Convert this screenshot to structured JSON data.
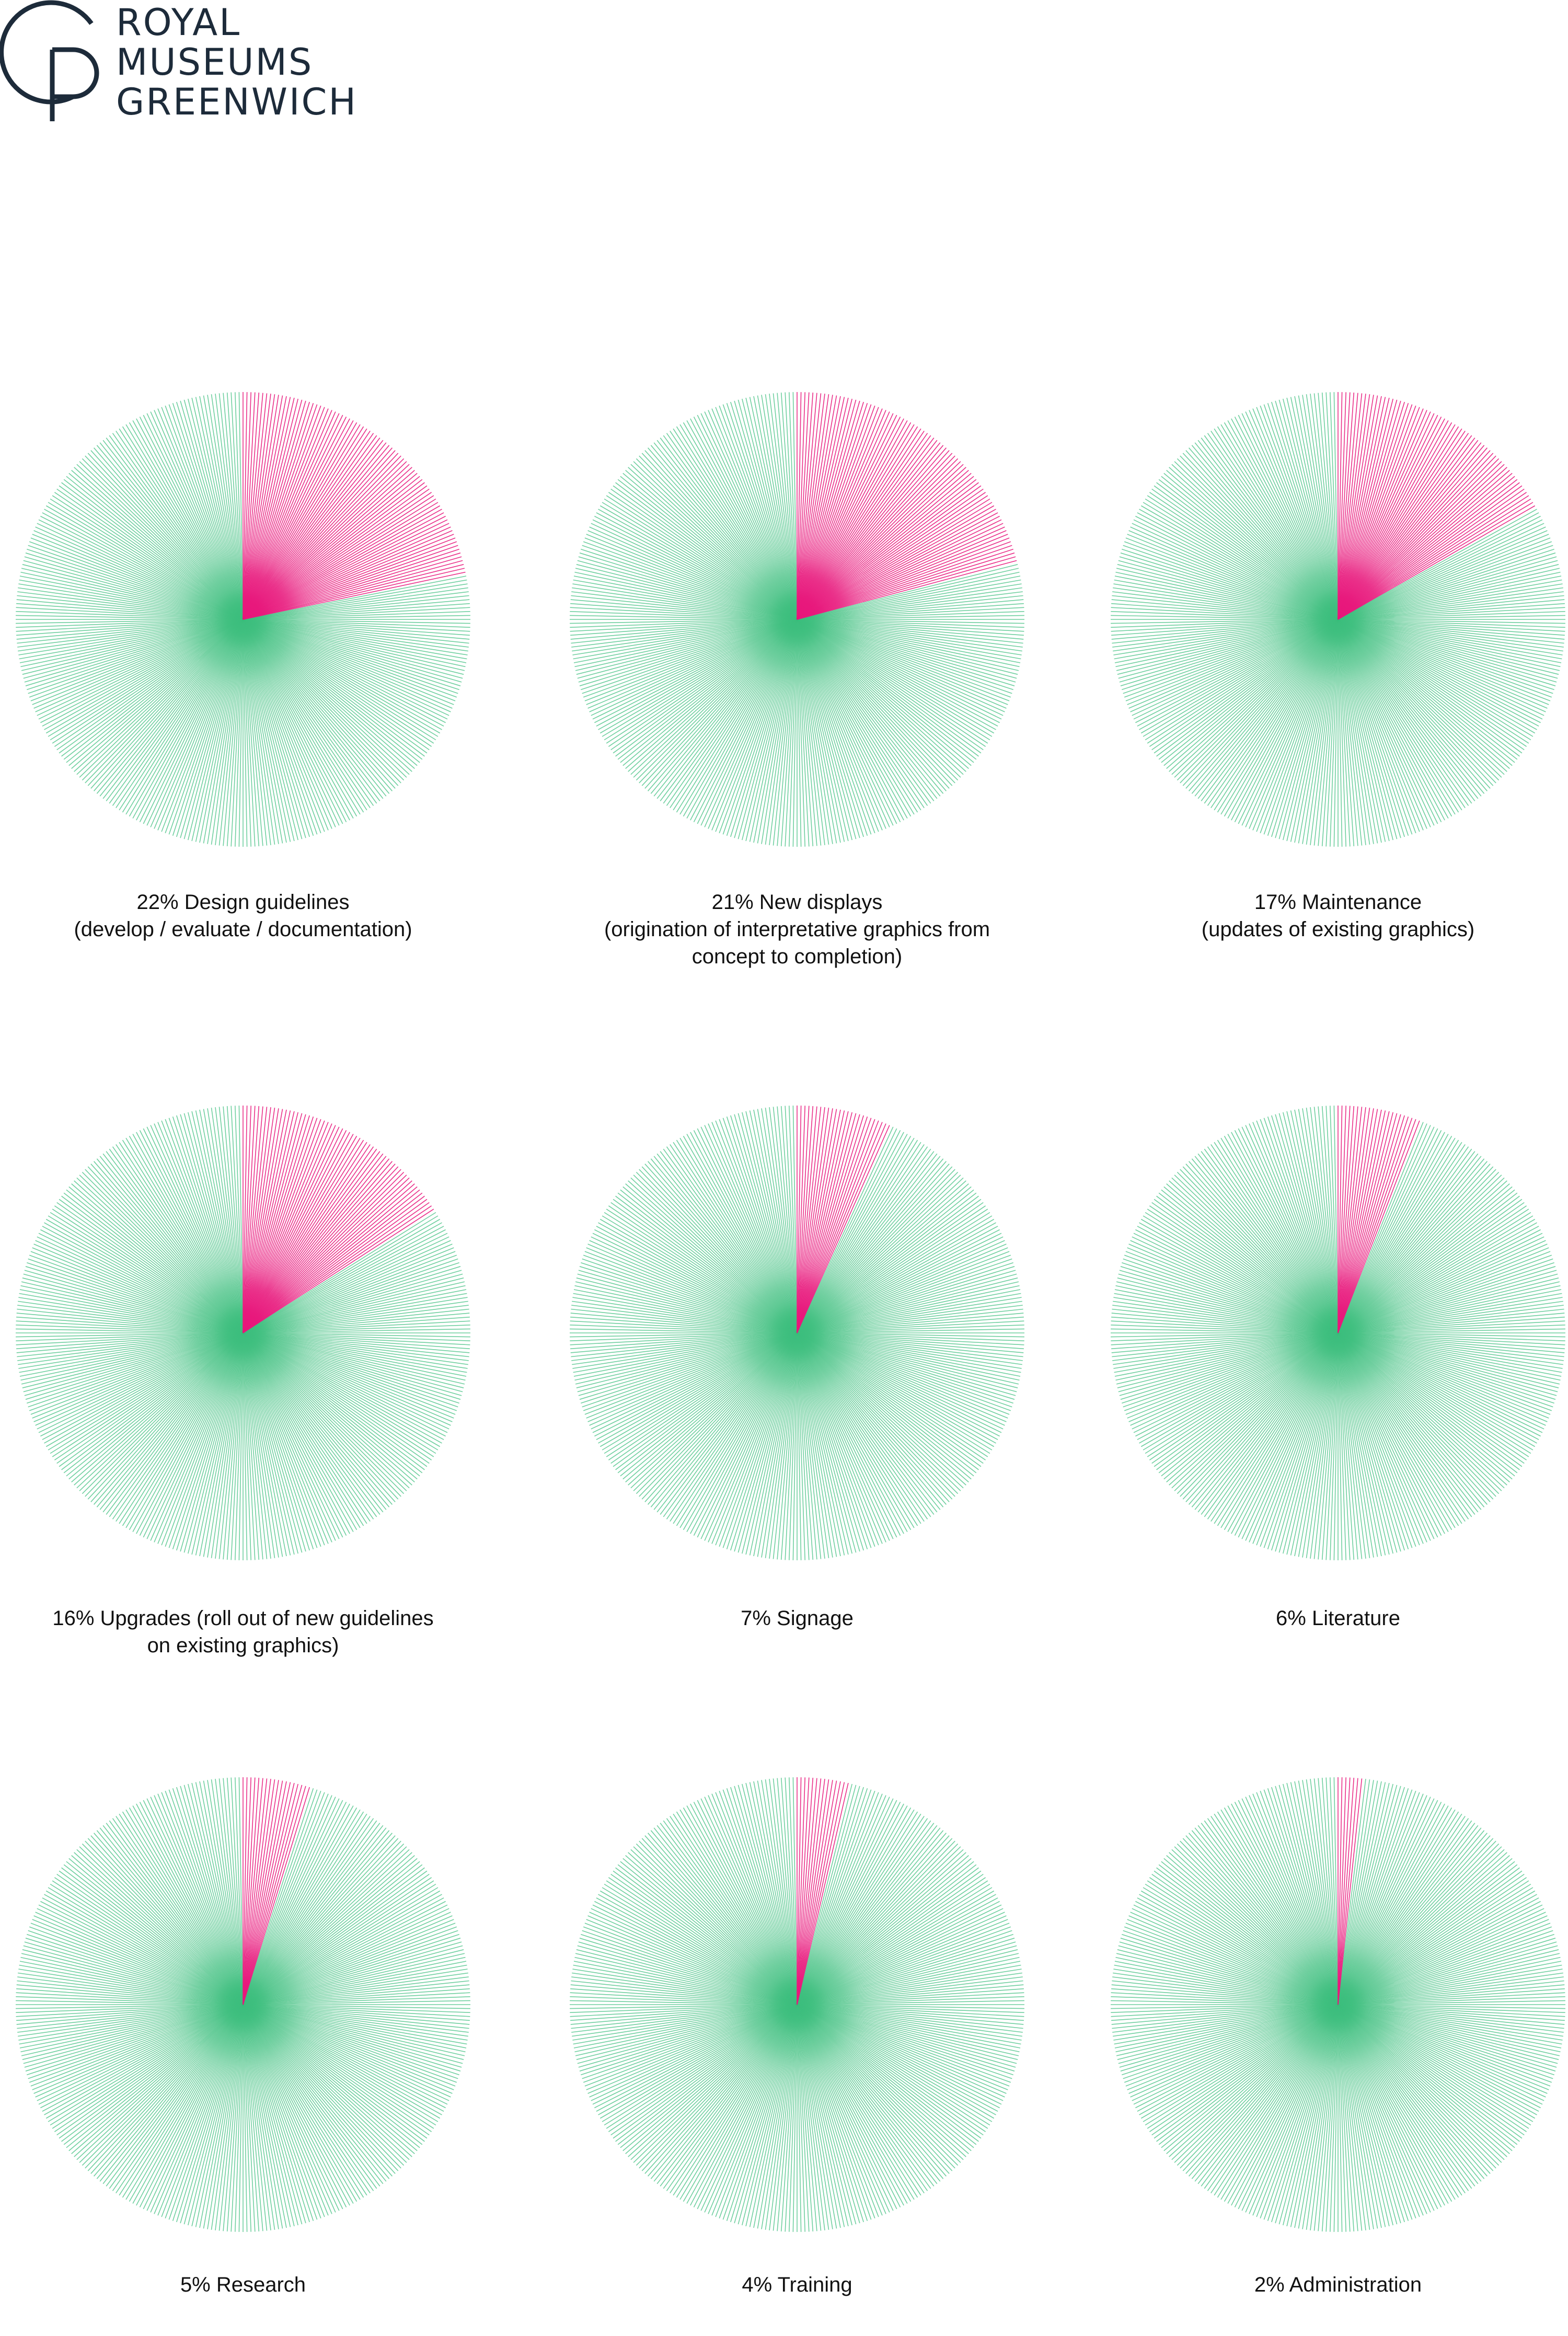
{
  "logo": {
    "line1": "ROYAL",
    "line2": "MUSEUMS",
    "line3": "GREENWICH",
    "color": "#1d2b3a"
  },
  "colors": {
    "highlight": "#e8187c",
    "rest": "#3fbf7f"
  },
  "chart_data": [
    {
      "type": "pie",
      "value": 22,
      "rest": 78,
      "caption_lines": [
        "22% Design guidelines",
        "(develop / evaluate / documentation)"
      ]
    },
    {
      "type": "pie",
      "value": 21,
      "rest": 79,
      "caption_lines": [
        "21% New displays",
        "(origination of interpretative graphics from",
        "concept to completion)"
      ]
    },
    {
      "type": "pie",
      "value": 17,
      "rest": 83,
      "caption_lines": [
        "17% Maintenance",
        "(updates of existing graphics)"
      ]
    },
    {
      "type": "pie",
      "value": 16,
      "rest": 84,
      "caption_lines": [
        "16% Upgrades (roll out of new guidelines",
        "on existing graphics)"
      ]
    },
    {
      "type": "pie",
      "value": 7,
      "rest": 93,
      "caption_lines": [
        "7% Signage"
      ]
    },
    {
      "type": "pie",
      "value": 6,
      "rest": 94,
      "caption_lines": [
        "6% Literature"
      ]
    },
    {
      "type": "pie",
      "value": 5,
      "rest": 95,
      "caption_lines": [
        "5% Research"
      ]
    },
    {
      "type": "pie",
      "value": 4,
      "rest": 96,
      "caption_lines": [
        "4% Training"
      ]
    },
    {
      "type": "pie",
      "value": 2,
      "rest": 98,
      "caption_lines": [
        "2% Administration"
      ]
    }
  ]
}
